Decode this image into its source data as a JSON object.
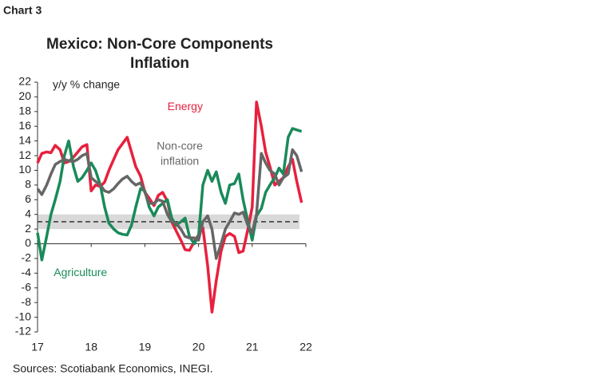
{
  "header": "Chart 3",
  "chart_data": {
    "type": "line",
    "title": [
      "Mexico: Non-Core Components",
      "Inflation"
    ],
    "y_label": "y/y % change",
    "source": "Sources: Scotiabank Economics, INEGI.",
    "xlim": [
      17,
      22
    ],
    "xticks": [
      17,
      18,
      19,
      20,
      21,
      22
    ],
    "ylim": [
      -12,
      22
    ],
    "yticks": [
      -12,
      -10,
      -8,
      -6,
      -4,
      -2,
      0,
      2,
      4,
      6,
      8,
      10,
      12,
      14,
      16,
      18,
      20,
      22
    ],
    "target": 3,
    "target_band": [
      2,
      4
    ],
    "x": [
      17,
      17.08,
      17.17,
      17.25,
      17.33,
      17.42,
      17.5,
      17.58,
      17.67,
      17.75,
      17.83,
      17.92,
      18,
      18.08,
      18.17,
      18.25,
      18.33,
      18.42,
      18.5,
      18.58,
      18.67,
      18.75,
      18.83,
      18.92,
      19,
      19.08,
      19.17,
      19.25,
      19.33,
      19.42,
      19.5,
      19.58,
      19.67,
      19.75,
      19.83,
      19.92,
      20,
      20.08,
      20.17,
      20.25,
      20.33,
      20.42,
      20.5,
      20.58,
      20.67,
      20.75,
      20.83,
      20.92,
      21,
      21.08,
      21.17,
      21.25,
      21.33,
      21.42,
      21.5,
      21.58,
      21.67,
      21.75,
      21.83,
      21.92
    ],
    "series": [
      {
        "name": "Energy",
        "color": "#e8203d",
        "label_at": [
          19.75,
          18.6
        ],
        "values": [
          11,
          12.3,
          12.5,
          12.4,
          13.4,
          12.8,
          11,
          11.2,
          11.8,
          12.5,
          13.2,
          13.5,
          7.2,
          8,
          7.8,
          8.4,
          10,
          11.5,
          12.8,
          13.6,
          14.5,
          12.5,
          10.5,
          9.2,
          7,
          6.2,
          5.2,
          6.6,
          7,
          5.8,
          3,
          1.8,
          0.5,
          -0.8,
          -0.9,
          0.3,
          1.2,
          2.2,
          -3,
          -9.3,
          -5,
          -1,
          1,
          1.4,
          1,
          -1.2,
          -1,
          2,
          5,
          19.3,
          16,
          12.5,
          10.5,
          8,
          8.5,
          9,
          10.5,
          11.5,
          8.5,
          5.6
        ]
      },
      {
        "name": "Agriculture",
        "color": "#1a8a5a",
        "label_at": [
          17.8,
          -4
        ],
        "values": [
          1.5,
          -2.2,
          1,
          4,
          6,
          8.5,
          12,
          14,
          10.5,
          8.5,
          9,
          10,
          11,
          10,
          8,
          5,
          2.8,
          2,
          1.5,
          1.3,
          1.2,
          2.5,
          5,
          7.5,
          7.2,
          5,
          3.8,
          5,
          5.5,
          6,
          3.5,
          2.5,
          3,
          3.5,
          1,
          0,
          1,
          8,
          10,
          8.5,
          9.8,
          7,
          5.5,
          8,
          8.2,
          9.5,
          6,
          3,
          0.5,
          3.8,
          4.8,
          7,
          8,
          9,
          10.3,
          9.5,
          14.5,
          15.7,
          15.5,
          15.3
        ]
      },
      {
        "name": [
          "Non-core",
          "inflation"
        ],
        "color": "#666666",
        "label_at": [
          19.65,
          13.2
        ],
        "values": [
          7.5,
          6.7,
          8,
          9.5,
          10.8,
          11.2,
          11.5,
          11.3,
          11.2,
          11.5,
          12,
          12.3,
          9,
          8.5,
          8,
          7.2,
          7,
          7.5,
          8.2,
          8.8,
          9.2,
          8.5,
          8,
          8.3,
          7,
          5.5,
          5.5,
          6,
          5.8,
          4,
          3,
          2.8,
          2,
          1,
          0.8,
          0.8,
          0.5,
          3,
          3.8,
          2,
          -2,
          0,
          2,
          3,
          4.2,
          4,
          4.3,
          2.5,
          1.5,
          4,
          12.3,
          11,
          10,
          9.5,
          8,
          9,
          9.5,
          12.8,
          12,
          9.8
        ]
      }
    ]
  }
}
